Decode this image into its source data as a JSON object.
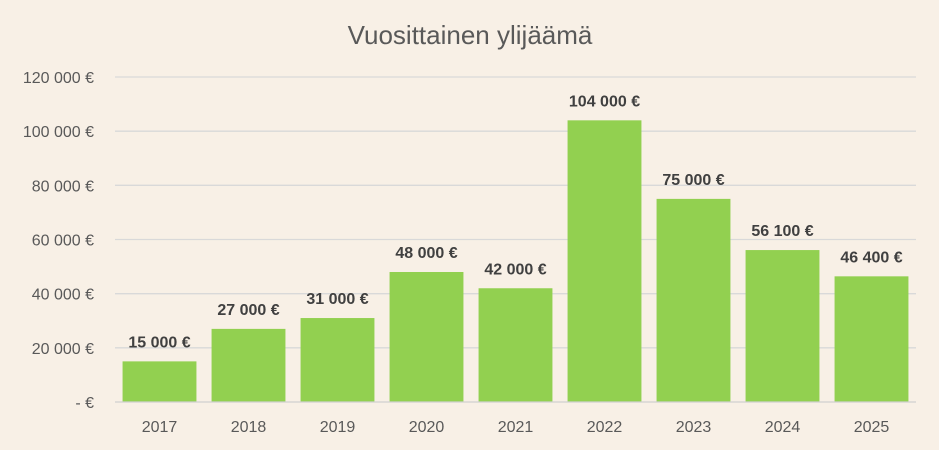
{
  "chart_data": {
    "type": "bar",
    "title": "Vuosittainen ylijäämä",
    "xlabel": "",
    "ylabel": "",
    "categories": [
      "2017",
      "2018",
      "2019",
      "2020",
      "2021",
      "2022",
      "2023",
      "2024",
      "2025"
    ],
    "values": [
      15000,
      27000,
      31000,
      48000,
      42000,
      104000,
      75000,
      56100,
      46400
    ],
    "data_labels": [
      "15 000 €",
      "27 000 €",
      "31 000 €",
      "48 000 €",
      "42 000 €",
      "104 000 €",
      "75 000 €",
      "56 100 €",
      "46 400 €"
    ],
    "ylim": [
      0,
      120000
    ],
    "y_ticks": [
      0,
      20000,
      40000,
      60000,
      80000,
      100000,
      120000
    ],
    "y_tick_labels": [
      "-   €",
      "20 000 €",
      "40 000 €",
      "60 000 €",
      "80 000 €",
      "100 000 €",
      "120 000 €"
    ],
    "grid": true,
    "legend": "none",
    "colors": {
      "bar": "#92d050",
      "background": "#f8f0e6",
      "grid": "#d9d9d9",
      "text": "#595959",
      "label": "#404040"
    }
  }
}
